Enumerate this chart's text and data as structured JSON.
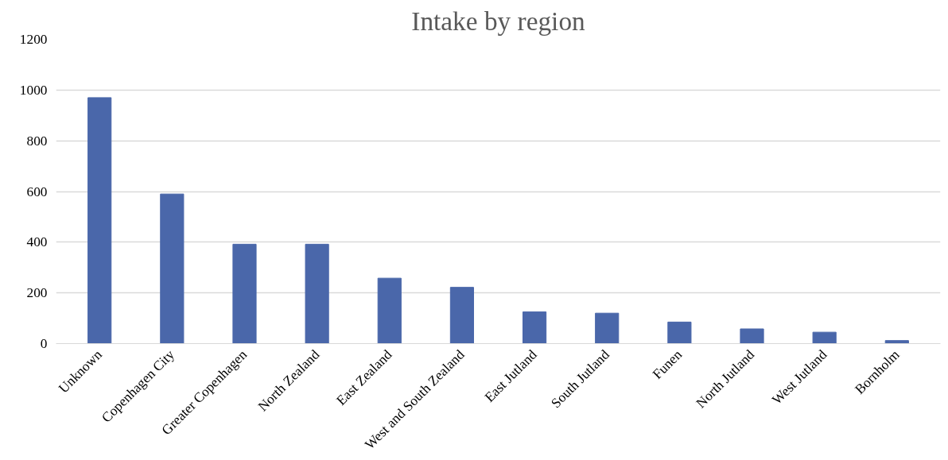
{
  "chart_data": {
    "type": "bar",
    "title": "Intake by region",
    "categories": [
      "Unknown",
      "Copenhagen City",
      "Greater Copenhagen",
      "North Zealand",
      "East Zealand",
      "West and South Zealand",
      "East Jutland",
      "South Jutland",
      "Funen",
      "North Jutland",
      "West Jutland",
      "Bornholm"
    ],
    "values": [
      970,
      590,
      392,
      392,
      258,
      222,
      125,
      120,
      85,
      58,
      45,
      12
    ],
    "color": "#4a67aa",
    "ylim": [
      0,
      1200
    ],
    "yticks": [
      0,
      200,
      400,
      600,
      800,
      1000,
      1200
    ],
    "grid": "y"
  }
}
